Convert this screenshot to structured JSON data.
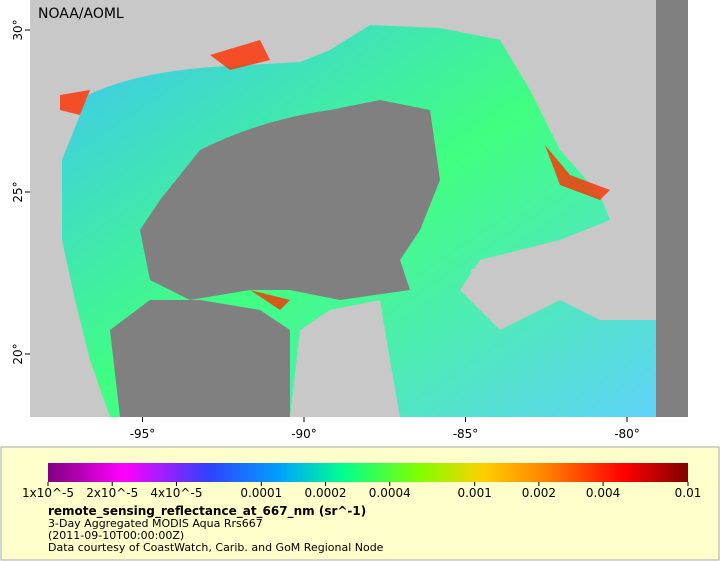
{
  "map": {
    "credit": "NOAA/AOML",
    "lon_ticks": [
      {
        "value": -95,
        "label": "-95°"
      },
      {
        "value": -90,
        "label": "-90°"
      },
      {
        "value": -85,
        "label": "-85°"
      },
      {
        "value": -80,
        "label": "-80°"
      }
    ],
    "lat_ticks": [
      {
        "value": 30,
        "label": "30°"
      },
      {
        "value": 25,
        "label": "25°"
      },
      {
        "value": 20,
        "label": "20°"
      }
    ]
  },
  "legend": {
    "scale": "log",
    "range": [
      1e-05,
      0.01
    ],
    "ticks": [
      {
        "value": 1e-05,
        "label": "1x10^-5"
      },
      {
        "value": 2e-05,
        "label": "2x10^-5"
      },
      {
        "value": 4e-05,
        "label": "4x10^-5"
      },
      {
        "value": 0.0001,
        "label": "0.0001"
      },
      {
        "value": 0.0002,
        "label": "0.0002"
      },
      {
        "value": 0.0004,
        "label": "0.0004"
      },
      {
        "value": 0.001,
        "label": "0.001"
      },
      {
        "value": 0.002,
        "label": "0.002"
      },
      {
        "value": 0.004,
        "label": "0.004"
      },
      {
        "value": 0.01,
        "label": "0.01"
      }
    ],
    "variable": "remote_sensing_reflectance_at_667_nm (sr^-1)",
    "dataset": "3-Day Aggregated MODIS Aqua Rrs667",
    "time": "(2011-09-10T00:00:00Z)",
    "source": "Data courtesy of CoastWatch, Carib. and GoM Regional Node"
  }
}
